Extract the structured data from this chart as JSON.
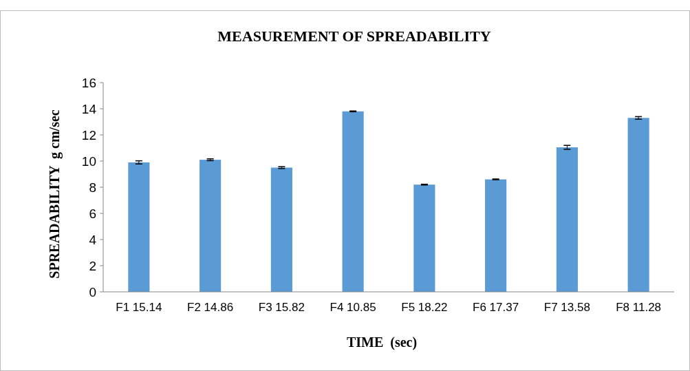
{
  "chart_data": {
    "type": "bar",
    "title": "MEASUREMENT OF SPREADABILITY",
    "xlabel": "TIME  (sec)",
    "ylabel": "SPREADABILITY  g cm/sec",
    "categories": [
      "F1 15.14",
      "F2 14.86",
      "F3 15.82",
      "F4 10.85",
      "F5 18.22",
      "F6 17.37",
      "F7 13.58",
      "F8 11.28"
    ],
    "values": [
      9.9,
      10.1,
      9.5,
      13.8,
      8.2,
      8.6,
      11.05,
      13.3
    ],
    "errors": [
      0.12,
      0.07,
      0.07,
      0.03,
      0.03,
      0.03,
      0.15,
      0.1
    ],
    "color": "#5b9bd5",
    "ylim": [
      0,
      16
    ],
    "yticks": [
      0,
      2,
      4,
      6,
      8,
      10,
      12,
      14,
      16
    ],
    "grid": false
  }
}
